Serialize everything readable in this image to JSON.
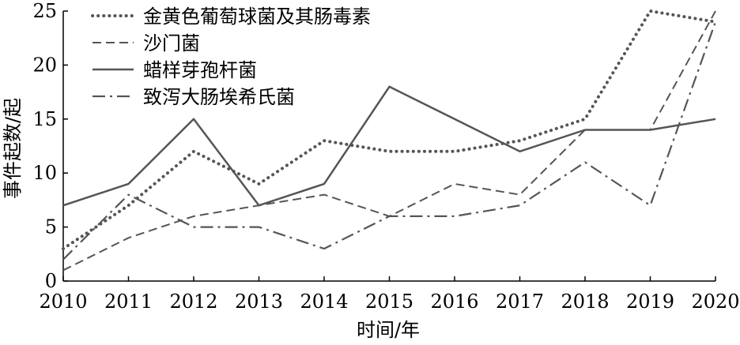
{
  "chart_data": {
    "type": "line",
    "x": [
      2010,
      2011,
      2012,
      2013,
      2014,
      2015,
      2016,
      2017,
      2018,
      2019,
      2020
    ],
    "series": [
      {
        "name": "金黄色葡萄球菌及其肠毒素",
        "values": [
          3,
          7,
          12,
          9,
          13,
          12,
          12,
          13,
          15,
          25,
          24
        ],
        "dash": "dotted"
      },
      {
        "name": "沙门菌",
        "values": [
          1,
          4,
          6,
          7,
          8,
          6,
          9,
          8,
          14,
          14,
          25
        ],
        "dash": "dashed"
      },
      {
        "name": "蜡样芽孢杆菌",
        "values": [
          7,
          9,
          15,
          7,
          9,
          18,
          15,
          12,
          14,
          14,
          15
        ],
        "dash": "solid"
      },
      {
        "name": "致泻大肠埃希氏菌",
        "values": [
          2,
          8,
          5,
          5,
          3,
          6,
          6,
          7,
          11,
          7,
          24
        ],
        "dash": "dashdot"
      }
    ],
    "xlabel": "时间/年",
    "ylabel": "事件起数/起",
    "ylim": [
      0,
      25
    ],
    "yticks": [
      0,
      5,
      10,
      15,
      20,
      25
    ],
    "grid": false,
    "legend_position": "top-left",
    "color": "#555555"
  }
}
